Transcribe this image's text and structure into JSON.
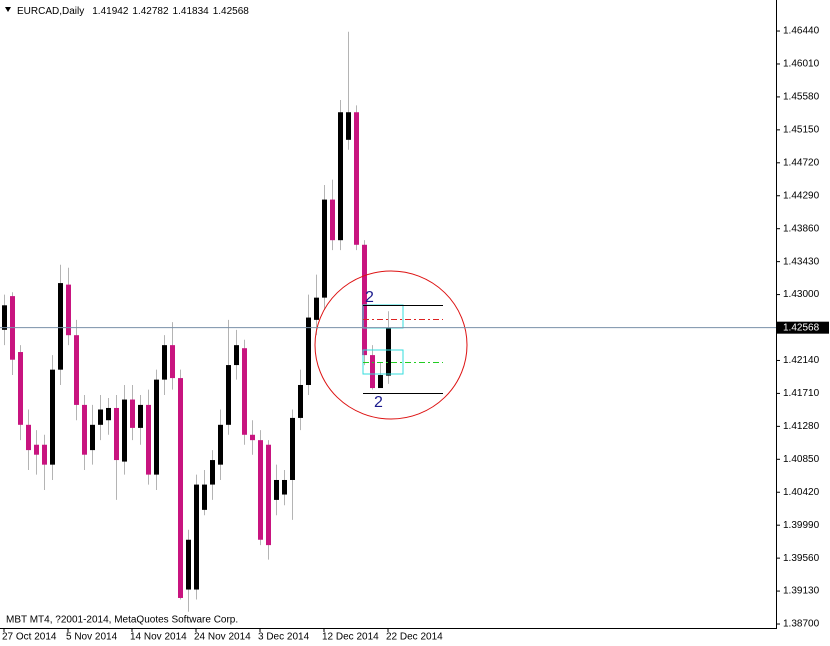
{
  "chart_data": {
    "type": "candlestick",
    "title": "EURCAD,Daily",
    "categories": [
      "27 Oct 2014",
      null,
      null,
      null,
      null,
      null,
      null,
      null,
      "5 Nov 2014",
      null,
      null,
      null,
      null,
      null,
      null,
      null,
      "14 Nov 2014",
      null,
      null,
      null,
      null,
      null,
      null,
      null,
      "24 Nov 2014",
      null,
      null,
      null,
      null,
      null,
      null,
      null,
      "3 Dec 2014",
      null,
      null,
      null,
      null,
      null,
      null,
      null,
      "12 Dec 2014",
      null,
      null,
      null,
      null,
      null,
      null,
      null,
      "22 Dec 2014"
    ],
    "candles": [
      {
        "open": 1.4254,
        "high": 1.43,
        "low": 1.4234,
        "close": 1.4286
      },
      {
        "open": 1.4298,
        "high": 1.4303,
        "low": 1.4195,
        "close": 1.4215
      },
      {
        "open": 1.4225,
        "high": 1.4234,
        "low": 1.411,
        "close": 1.413
      },
      {
        "open": 1.413,
        "high": 1.415,
        "low": 1.4071,
        "close": 1.4097
      },
      {
        "open": 1.4104,
        "high": 1.4123,
        "low": 1.4065,
        "close": 1.4091
      },
      {
        "open": 1.4104,
        "high": 1.4117,
        "low": 1.4045,
        "close": 1.4078
      },
      {
        "open": 1.4078,
        "high": 1.4221,
        "low": 1.4058,
        "close": 1.4202
      },
      {
        "open": 1.4202,
        "high": 1.4339,
        "low": 1.4182,
        "close": 1.4315
      },
      {
        "open": 1.4313,
        "high": 1.4335,
        "low": 1.4234,
        "close": 1.4247
      },
      {
        "open": 1.4247,
        "high": 1.4267,
        "low": 1.4136,
        "close": 1.4156
      },
      {
        "open": 1.4156,
        "high": 1.4169,
        "low": 1.4071,
        "close": 1.4091
      },
      {
        "open": 1.4097,
        "high": 1.4156,
        "low": 1.4078,
        "close": 1.413
      },
      {
        "open": 1.413,
        "high": 1.4169,
        "low": 1.411,
        "close": 1.415
      },
      {
        "open": 1.4136,
        "high": 1.4165,
        "low": 1.4117,
        "close": 1.4152
      },
      {
        "open": 1.4152,
        "high": 1.4169,
        "low": 1.4032,
        "close": 1.4084
      },
      {
        "open": 1.4082,
        "high": 1.4182,
        "low": 1.4065,
        "close": 1.4163
      },
      {
        "open": 1.4163,
        "high": 1.4182,
        "low": 1.411,
        "close": 1.4126
      },
      {
        "open": 1.4126,
        "high": 1.4169,
        "low": 1.4104,
        "close": 1.4156
      },
      {
        "open": 1.4156,
        "high": 1.4176,
        "low": 1.4052,
        "close": 1.4065
      },
      {
        "open": 1.4065,
        "high": 1.4202,
        "low": 1.4045,
        "close": 1.4189
      },
      {
        "open": 1.4189,
        "high": 1.4247,
        "low": 1.4169,
        "close": 1.4234
      },
      {
        "open": 1.4234,
        "high": 1.4264,
        "low": 1.4176,
        "close": 1.4191
      },
      {
        "open": 1.4191,
        "high": 1.4202,
        "low": 1.3902,
        "close": 1.3904
      },
      {
        "open": 1.3915,
        "high": 1.3993,
        "low": 1.3886,
        "close": 1.398
      },
      {
        "open": 1.3915,
        "high": 1.4065,
        "low": 1.3902,
        "close": 1.4052
      },
      {
        "open": 1.4019,
        "high": 1.4071,
        "low": 1.4012,
        "close": 1.4052
      },
      {
        "open": 1.4052,
        "high": 1.4097,
        "low": 1.4032,
        "close": 1.4084
      },
      {
        "open": 1.4078,
        "high": 1.415,
        "low": 1.4058,
        "close": 1.413
      },
      {
        "open": 1.413,
        "high": 1.4267,
        "low": 1.4117,
        "close": 1.4208
      },
      {
        "open": 1.4208,
        "high": 1.4254,
        "low": 1.4189,
        "close": 1.4234
      },
      {
        "open": 1.423,
        "high": 1.4241,
        "low": 1.4104,
        "close": 1.4117
      },
      {
        "open": 1.4117,
        "high": 1.4136,
        "low": 1.4091,
        "close": 1.411
      },
      {
        "open": 1.411,
        "high": 1.4123,
        "low": 1.3973,
        "close": 1.398
      },
      {
        "open": 1.4104,
        "high": 1.411,
        "low": 1.3954,
        "close": 1.3973
      },
      {
        "open": 1.4032,
        "high": 1.4078,
        "low": 1.4012,
        "close": 1.4058
      },
      {
        "open": 1.4039,
        "high": 1.4071,
        "low": 1.4025,
        "close": 1.4058
      },
      {
        "open": 1.4058,
        "high": 1.415,
        "low": 1.4006,
        "close": 1.4139
      },
      {
        "open": 1.4139,
        "high": 1.4202,
        "low": 1.4123,
        "close": 1.4182
      },
      {
        "open": 1.4182,
        "high": 1.43,
        "low": 1.4169,
        "close": 1.427
      },
      {
        "open": 1.4267,
        "high": 1.4326,
        "low": 1.4247,
        "close": 1.4296
      },
      {
        "open": 1.4296,
        "high": 1.4443,
        "low": 1.428,
        "close": 1.4424
      },
      {
        "open": 1.4424,
        "high": 1.445,
        "low": 1.4358,
        "close": 1.4371
      },
      {
        "open": 1.4371,
        "high": 1.4554,
        "low": 1.4358,
        "close": 1.4538
      },
      {
        "open": 1.4502,
        "high": 1.4643,
        "low": 1.4489,
        "close": 1.4538
      },
      {
        "open": 1.4538,
        "high": 1.4547,
        "low": 1.4358,
        "close": 1.4365
      },
      {
        "open": 1.4365,
        "high": 1.4371,
        "low": 1.4208,
        "close": 1.4221
      },
      {
        "open": 1.4221,
        "high": 1.4234,
        "low": 1.4176,
        "close": 1.4178
      },
      {
        "open": 1.4178,
        "high": 1.4212,
        "low": 1.4178,
        "close": 1.4195
      },
      {
        "open": 1.41942,
        "high": 1.42782,
        "low": 1.41834,
        "close": 1.42568
      }
    ],
    "up_color": "#000000",
    "down_color": "#c8147f",
    "wick_color": "#b4b4b4",
    "price_line_color": "#7a90a8",
    "ylim": [
      1.38648,
      1.46845
    ],
    "yticks": [
      {
        "value": 1.4644,
        "label": "1.46440"
      },
      {
        "value": 1.4601,
        "label": "1.46010"
      },
      {
        "value": 1.4558,
        "label": "1.45580"
      },
      {
        "value": 1.4515,
        "label": "1.45150"
      },
      {
        "value": 1.4472,
        "label": "1.44720"
      },
      {
        "value": 1.4429,
        "label": "1.44290"
      },
      {
        "value": 1.4386,
        "label": "1.43860"
      },
      {
        "value": 1.4343,
        "label": "1.43430"
      },
      {
        "value": 1.43,
        "label": "1.43000"
      },
      {
        "value": 1.4214,
        "label": "1.42140"
      },
      {
        "value": 1.4171,
        "label": "1.41710"
      },
      {
        "value": 1.4128,
        "label": "1.41280"
      },
      {
        "value": 1.4085,
        "label": "1.40850"
      },
      {
        "value": 1.4042,
        "label": "1.40420"
      },
      {
        "value": 1.3999,
        "label": "1.39990"
      },
      {
        "value": 1.3956,
        "label": "1.39560"
      },
      {
        "value": 1.3913,
        "label": "1.39130"
      },
      {
        "value": 1.387,
        "label": "1.38700"
      }
    ],
    "grid": false,
    "footer": "MBT MT4, ?2001-2014, MetaQuotes Software Corp.",
    "annotations": [
      "2",
      "2"
    ]
  }
}
